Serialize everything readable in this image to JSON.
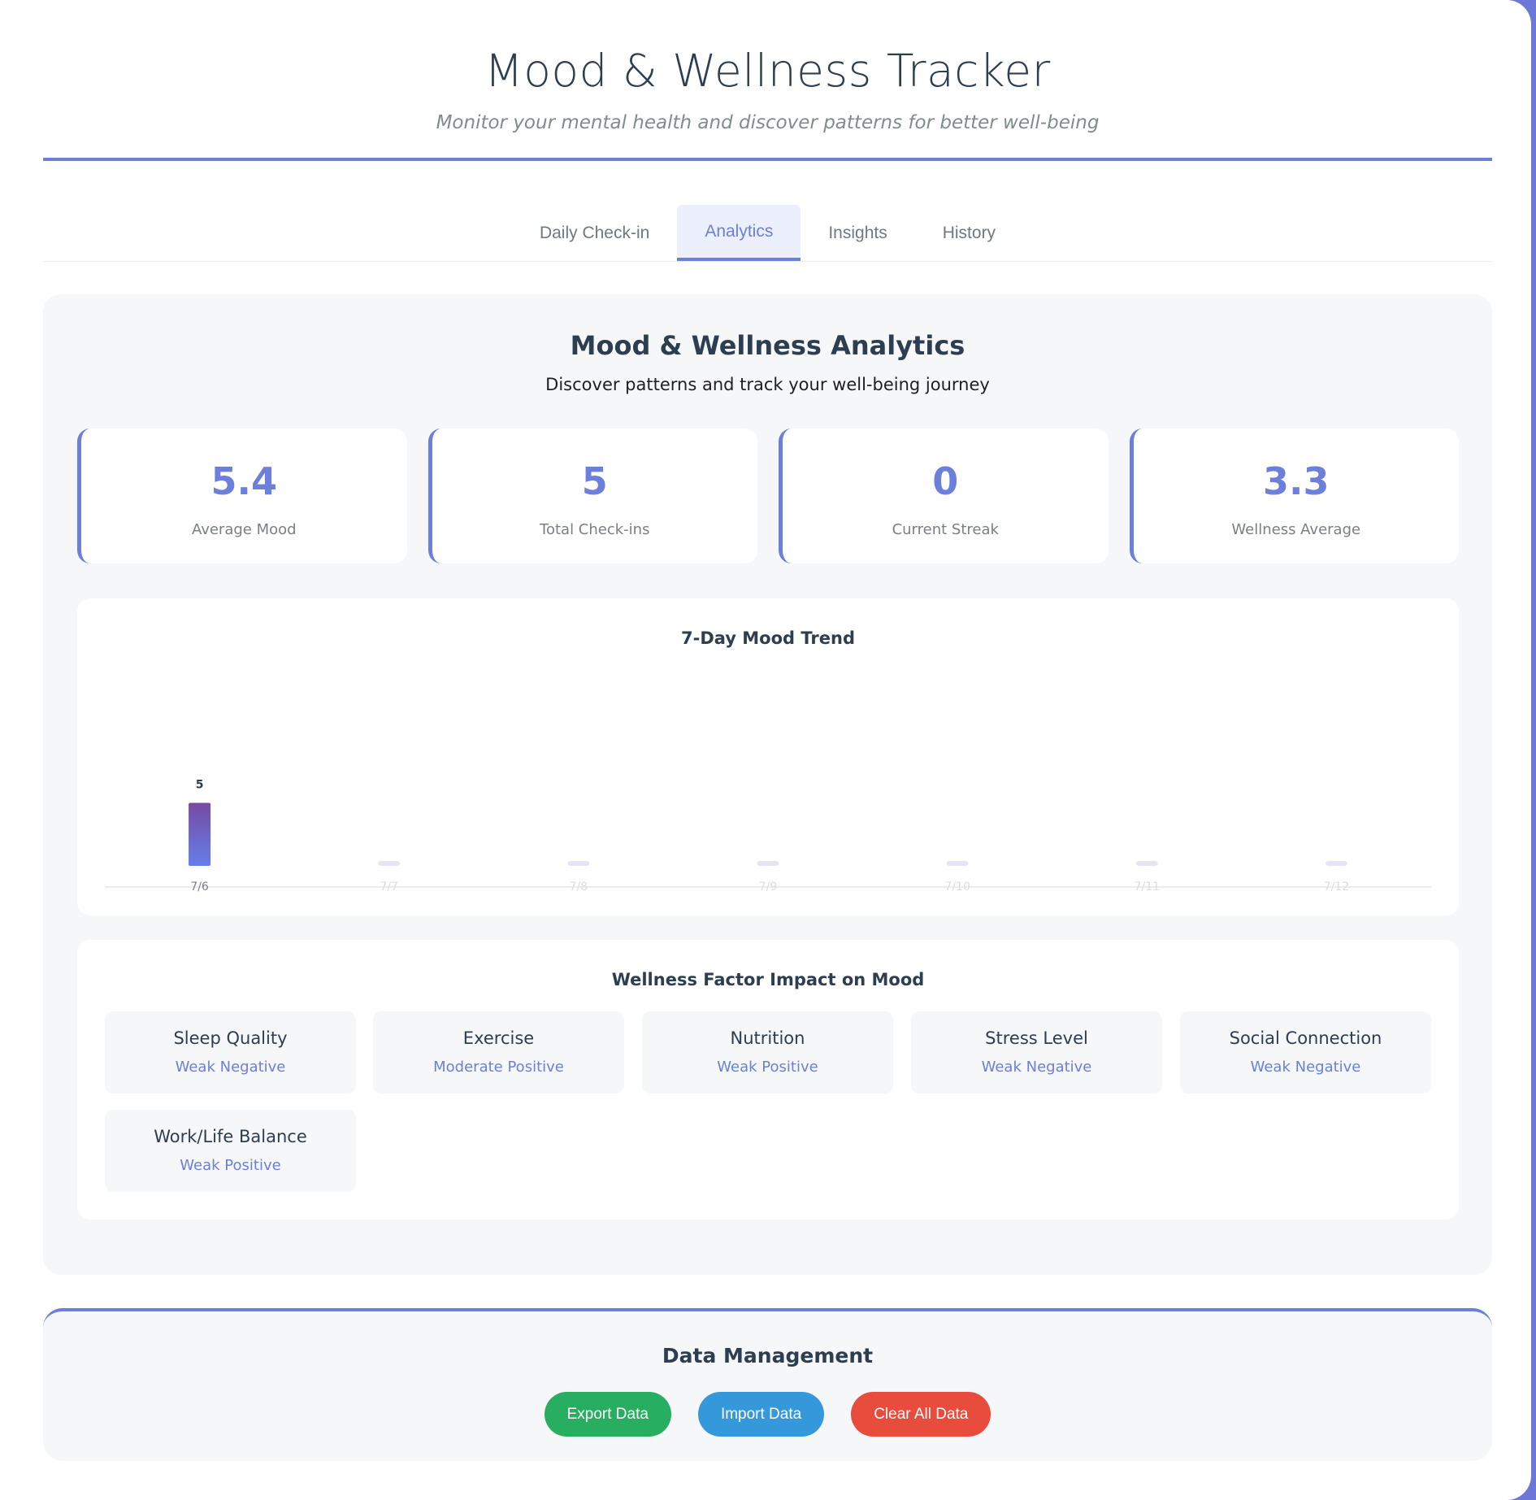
{
  "header": {
    "title": "Mood & Wellness Tracker",
    "subtitle": "Monitor your mental health and discover patterns for better well-being"
  },
  "tabs": [
    {
      "label": "Daily Check-in",
      "active": false
    },
    {
      "label": "Analytics",
      "active": true
    },
    {
      "label": "Insights",
      "active": false
    },
    {
      "label": "History",
      "active": false
    }
  ],
  "analytics": {
    "title": "Mood & Wellness Analytics",
    "lead": "Discover patterns and track your well-being journey",
    "stats": [
      {
        "value": "5.4",
        "label": "Average Mood"
      },
      {
        "value": "5",
        "label": "Total Check-ins"
      },
      {
        "value": "0",
        "label": "Current Streak"
      },
      {
        "value": "3.3",
        "label": "Wellness Average"
      }
    ]
  },
  "chart_data": {
    "type": "bar",
    "title": "7-Day Mood Trend",
    "categories": [
      "7/6",
      "7/7",
      "7/8",
      "7/9",
      "7/10",
      "7/11",
      "7/12"
    ],
    "values": [
      5,
      null,
      null,
      null,
      null,
      null,
      null
    ],
    "data_labels": [
      "5",
      "",
      "",
      "",
      "",
      "",
      ""
    ],
    "ylim": [
      0,
      10
    ],
    "grid": false,
    "bar_gradient": [
      "#764ba2",
      "#667eea"
    ],
    "empty_bar_color": "#e6e3f2"
  },
  "factors": {
    "title": "Wellness Factor Impact on Mood",
    "items": [
      {
        "name": "Sleep Quality",
        "impact": "Weak Negative"
      },
      {
        "name": "Exercise",
        "impact": "Moderate Positive"
      },
      {
        "name": "Nutrition",
        "impact": "Weak Positive"
      },
      {
        "name": "Stress Level",
        "impact": "Weak Negative"
      },
      {
        "name": "Social Connection",
        "impact": "Weak Negative"
      },
      {
        "name": "Work/Life Balance",
        "impact": "Weak Positive"
      }
    ]
  },
  "data_management": {
    "title": "Data Management",
    "export_label": "Export Data",
    "import_label": "Import Data",
    "clear_label": "Clear All Data"
  },
  "colors": {
    "accent": "#6b7fdb",
    "export": "#27ae60",
    "import": "#3498db",
    "clear": "#e74c3c"
  }
}
